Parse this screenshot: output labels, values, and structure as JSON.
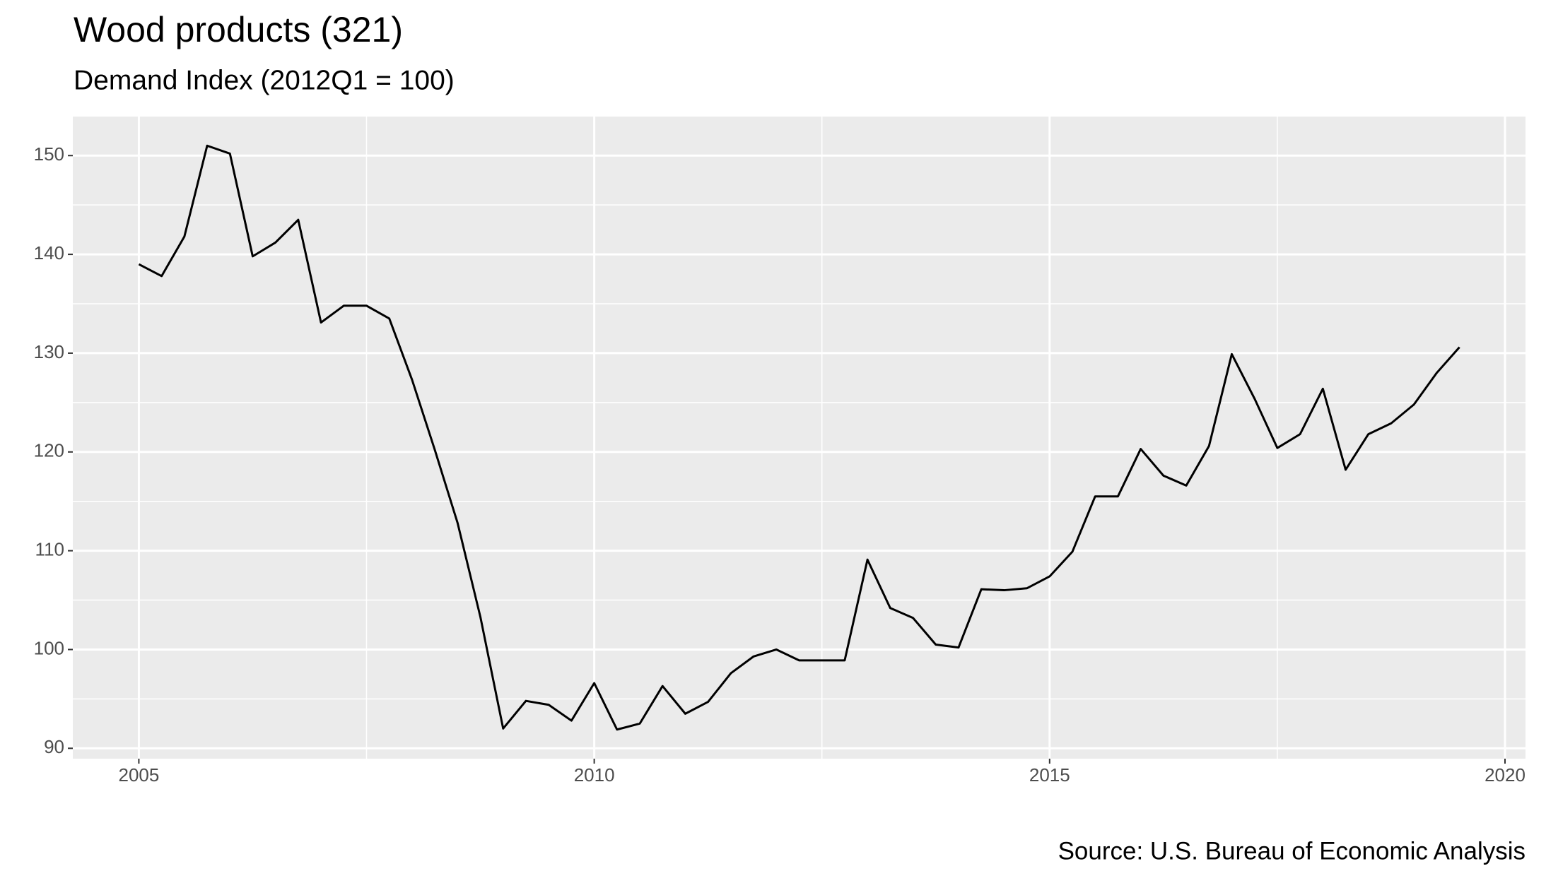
{
  "chart_data": {
    "type": "line",
    "title": "Wood products (321)",
    "subtitle": "Demand Index (2012Q1 = 100)",
    "caption": "Source: U.S. Bureau of Economic Analysis",
    "x": [
      2005,
      2005.25,
      2005.5,
      2005.75,
      2006,
      2006.25,
      2006.5,
      2006.75,
      2007,
      2007.25,
      2007.5,
      2007.75,
      2008,
      2008.25,
      2008.5,
      2008.75,
      2009,
      2009.25,
      2009.5,
      2009.75,
      2010,
      2010.25,
      2010.5,
      2010.75,
      2011,
      2011.25,
      2011.5,
      2011.75,
      2012,
      2012.25,
      2012.5,
      2012.75,
      2013,
      2013.25,
      2013.5,
      2013.75,
      2014,
      2014.25,
      2014.5,
      2014.75,
      2015,
      2015.25,
      2015.5,
      2015.75,
      2016,
      2016.25,
      2016.5,
      2016.75,
      2017,
      2017.25,
      2017.5,
      2017.75,
      2018,
      2018.25,
      2018.5,
      2018.75,
      2019,
      2019.25,
      2019.5
    ],
    "series": [
      {
        "name": "Demand Index",
        "color": "#000000",
        "values": [
          139.0,
          137.8,
          141.8,
          151.0,
          150.2,
          139.8,
          141.2,
          143.5,
          133.1,
          134.8,
          134.8,
          133.5,
          127.3,
          120.2,
          112.8,
          103.3,
          92.0,
          94.8,
          94.4,
          92.8,
          96.6,
          91.9,
          92.5,
          96.3,
          93.5,
          94.7,
          97.6,
          99.3,
          100.0,
          98.9,
          98.9,
          98.9,
          109.1,
          104.2,
          103.2,
          100.5,
          100.2,
          106.1,
          106.0,
          106.2,
          107.4,
          109.9,
          115.5,
          115.5,
          120.3,
          117.6,
          116.6,
          120.6,
          129.9,
          125.4,
          120.4,
          121.8,
          126.4,
          118.2,
          121.8,
          122.9,
          124.8,
          128.0,
          130.6
        ]
      }
    ],
    "xlim": [
      2004.275,
      2020.225
    ],
    "xticks": [
      2005,
      2010,
      2015,
      2020
    ],
    "ylim": [
      88.95,
      153.95
    ],
    "yticks": [
      90,
      100,
      110,
      120,
      130,
      140,
      150
    ],
    "grid": true
  }
}
